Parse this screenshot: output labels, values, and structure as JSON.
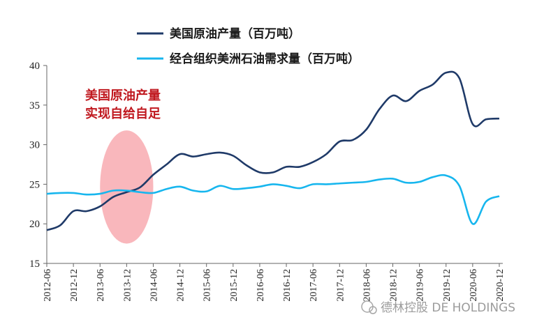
{
  "chart_data": {
    "type": "line",
    "title": "",
    "xlabel": "",
    "ylabel": "",
    "ylim": [
      15,
      40
    ],
    "yticks": [
      15,
      20,
      25,
      30,
      35,
      40
    ],
    "xtick_labels": [
      "2012-06",
      "2012-12",
      "2013-06",
      "2013-12",
      "2014-06",
      "2014-12",
      "2015-06",
      "2015-12",
      "2016-06",
      "2016-12",
      "2017-06",
      "2017-12",
      "2018-06",
      "2018-12",
      "2019-06",
      "2019-12",
      "2020-06",
      "2020-12"
    ],
    "grid": false,
    "legend_position": "top",
    "series": [
      {
        "name": "美国原油产量（百万吨）",
        "color": "#1f3a68",
        "x": [
          "2012-06",
          "2012-09",
          "2012-12",
          "2013-03",
          "2013-06",
          "2013-09",
          "2013-12",
          "2014-03",
          "2014-06",
          "2014-09",
          "2014-12",
          "2015-03",
          "2015-06",
          "2015-09",
          "2015-12",
          "2016-03",
          "2016-06",
          "2016-09",
          "2016-12",
          "2017-03",
          "2017-06",
          "2017-09",
          "2017-12",
          "2018-03",
          "2018-06",
          "2018-09",
          "2018-12",
          "2019-03",
          "2019-06",
          "2019-09",
          "2019-12",
          "2020-03",
          "2020-06",
          "2020-09",
          "2020-12"
        ],
        "values": [
          19.2,
          19.8,
          21.6,
          21.6,
          22.2,
          23.4,
          24.0,
          24.6,
          26.2,
          27.5,
          28.8,
          28.5,
          28.8,
          29.0,
          28.6,
          27.4,
          26.5,
          26.5,
          27.2,
          27.2,
          27.8,
          28.8,
          30.4,
          30.6,
          31.9,
          34.5,
          36.2,
          35.5,
          36.8,
          37.6,
          39.1,
          38.4,
          32.6,
          33.2,
          33.3
        ]
      },
      {
        "name": "经合组织美洲石油需求量（百万吨）",
        "color": "#17b6ee",
        "x": [
          "2012-06",
          "2012-09",
          "2012-12",
          "2013-03",
          "2013-06",
          "2013-09",
          "2013-12",
          "2014-03",
          "2014-06",
          "2014-09",
          "2014-12",
          "2015-03",
          "2015-06",
          "2015-09",
          "2015-12",
          "2016-03",
          "2016-06",
          "2016-09",
          "2016-12",
          "2017-03",
          "2017-06",
          "2017-09",
          "2017-12",
          "2018-03",
          "2018-06",
          "2018-09",
          "2018-12",
          "2019-03",
          "2019-06",
          "2019-09",
          "2019-12",
          "2020-03",
          "2020-06",
          "2020-09",
          "2020-12"
        ],
        "values": [
          23.8,
          23.9,
          23.9,
          23.7,
          23.8,
          24.2,
          24.2,
          24.0,
          23.9,
          24.4,
          24.7,
          24.2,
          24.1,
          24.8,
          24.4,
          24.5,
          24.7,
          25.0,
          24.8,
          24.5,
          25.0,
          25.0,
          25.1,
          25.2,
          25.3,
          25.6,
          25.7,
          25.2,
          25.3,
          25.9,
          26.1,
          24.8,
          20.0,
          22.8,
          23.5
        ]
      }
    ],
    "annotation": {
      "line1": "美国原油产量",
      "line2": "实现自给自足",
      "highlight_period": [
        "2013-06",
        "2014-06"
      ],
      "highlight_y_range": [
        17.5,
        31.8
      ],
      "highlight_color": "#f7a5ab"
    }
  },
  "watermark": "德林控股 DE HOLDINGS"
}
